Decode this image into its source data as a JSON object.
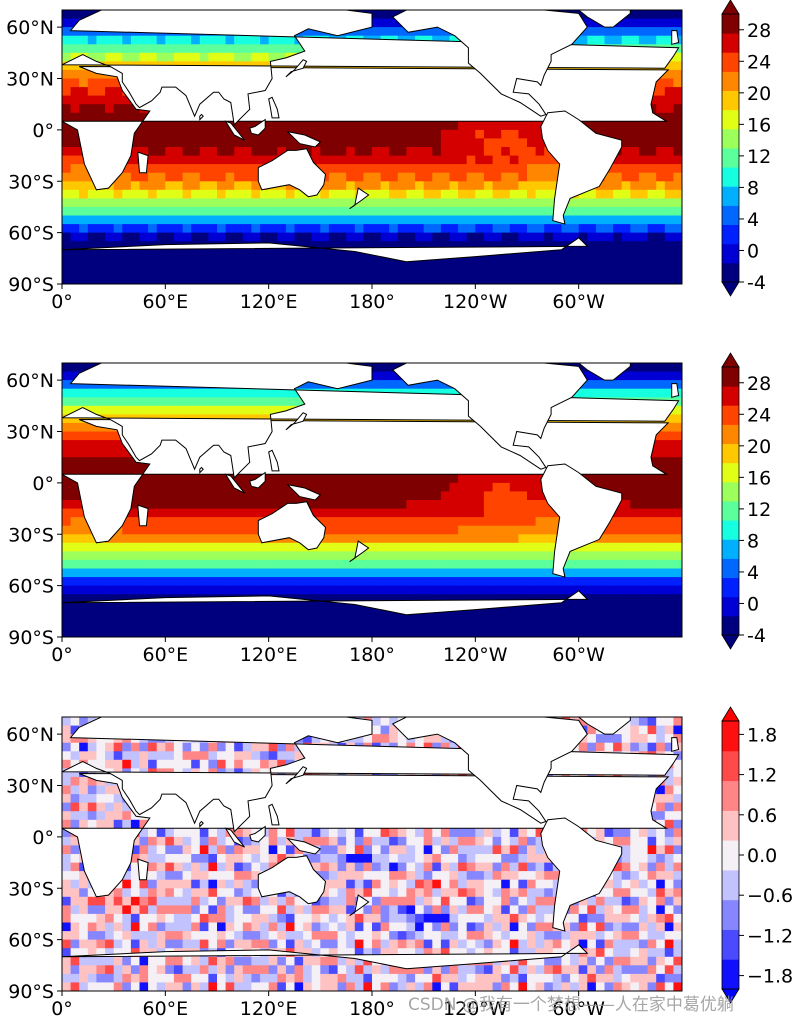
{
  "figure": {
    "maps": [
      {
        "id": "sst-1",
        "lat_ticks": [
          "60°N",
          "30°N",
          "0°",
          "30°S",
          "60°S",
          "90°S"
        ],
        "lon_ticks": [
          "0°",
          "60°E",
          "120°E",
          "180°",
          "120°W",
          "60°W"
        ],
        "colorbar": {
          "colormap": "jet",
          "ticks": [
            "28",
            "24",
            "20",
            "16",
            "12",
            "8",
            "4",
            "0",
            "-4"
          ],
          "range": [
            -4,
            30
          ],
          "extend": "both"
        }
      },
      {
        "id": "sst-2",
        "lat_ticks": [
          "60°N",
          "30°N",
          "0°",
          "30°S",
          "60°S",
          "90°S"
        ],
        "lon_ticks": [
          "0°",
          "60°E",
          "120°E",
          "180°",
          "120°W",
          "60°W"
        ],
        "colorbar": {
          "colormap": "jet",
          "ticks": [
            "28",
            "24",
            "20",
            "16",
            "12",
            "8",
            "4",
            "0",
            "-4"
          ],
          "range": [
            -4,
            30
          ],
          "extend": "both"
        }
      },
      {
        "id": "difference",
        "lat_ticks": [
          "60°N",
          "30°N",
          "0°",
          "30°S",
          "60°S",
          "90°S"
        ],
        "lon_ticks": [
          "0°",
          "60°E",
          "120°E",
          "180°",
          "120°W",
          "60°W"
        ],
        "colorbar": {
          "colormap": "bwr",
          "ticks": [
            "1.8",
            "1.2",
            "0.6",
            "0.0",
            "−0.6",
            "−1.2",
            "−1.8"
          ],
          "range": [
            -2,
            2
          ],
          "extend": "both"
        }
      }
    ],
    "watermark": "CSDN @我有一个梦想——人在家中葛优躺",
    "colors": {
      "land": "#ffffff",
      "coast": "#000000",
      "jet": [
        "#00007f",
        "#0000d4",
        "#0020ff",
        "#0068ff",
        "#00b0ff",
        "#16ffe1",
        "#5bff9c",
        "#9cff5b",
        "#e1ff16",
        "#ffc800",
        "#ff8700",
        "#ff4400",
        "#d40000",
        "#7f0000"
      ],
      "bwr": [
        "#1010ff",
        "#4a4aff",
        "#8686ff",
        "#c2c2ff",
        "#f5f0f5",
        "#ffc2c2",
        "#ff8686",
        "#ff4a4a",
        "#ff1010"
      ]
    }
  }
}
